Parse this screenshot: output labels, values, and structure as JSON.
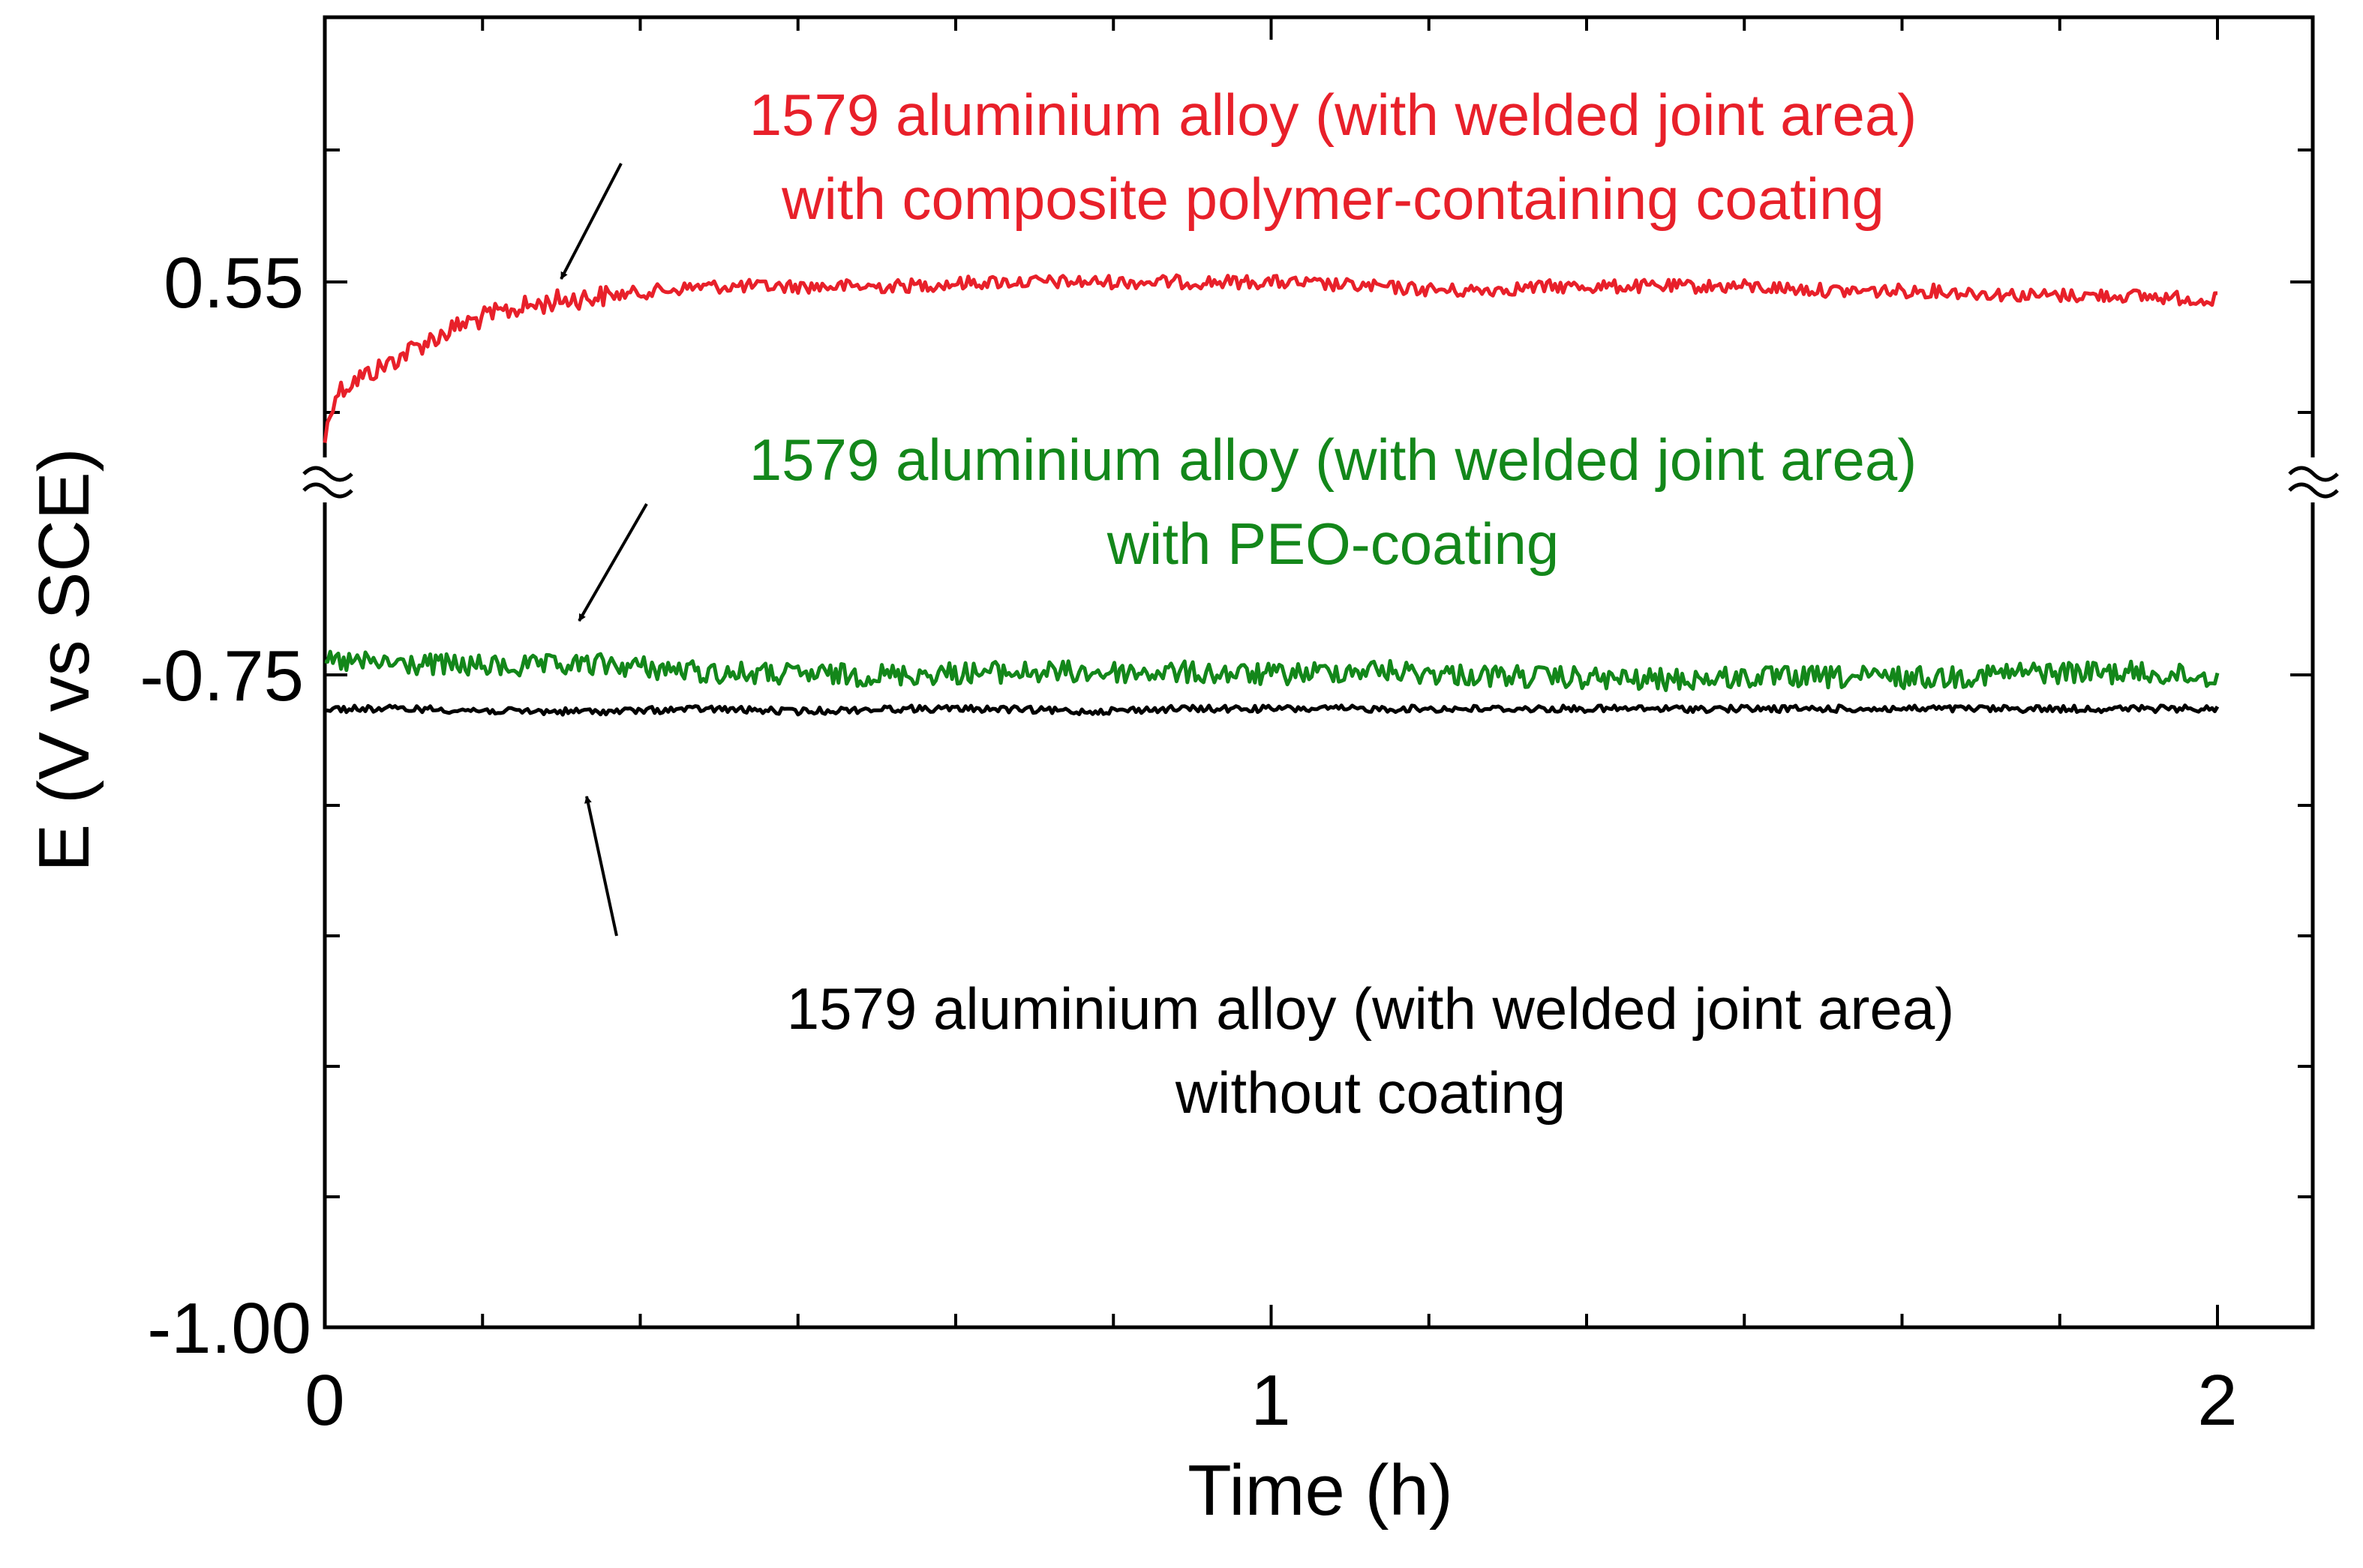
{
  "chart_data": {
    "type": "line",
    "title": "",
    "xlabel": "Time (h)",
    "ylabel": "E (V vs SCE)",
    "xlim": [
      0,
      2
    ],
    "x_ticks": [
      "0",
      "1",
      "2"
    ],
    "y_ticks": [
      "0.55",
      "-0.75",
      "-1.00"
    ],
    "y_axis_break": "between -0.75 and 0.55",
    "grid": false,
    "series": [
      {
        "name": "with composite polymer-containing coating",
        "color": "#e8202a",
        "panel": "upper",
        "x": [
          0.0,
          0.01,
          0.03,
          0.06,
          0.1,
          0.15,
          0.2,
          0.25,
          0.3,
          0.4,
          0.5,
          0.6,
          0.7,
          0.8,
          0.9,
          1.0,
          1.1,
          1.2,
          1.3,
          1.4,
          1.5,
          1.6,
          1.7,
          1.8,
          1.9,
          2.0
        ],
        "values": [
          0.515,
          0.525,
          0.528,
          0.531,
          0.536,
          0.541,
          0.544,
          0.546,
          0.547,
          0.549,
          0.549,
          0.549,
          0.55,
          0.55,
          0.55,
          0.55,
          0.549,
          0.548,
          0.549,
          0.549,
          0.549,
          0.548,
          0.548,
          0.547,
          0.547,
          0.546
        ]
      },
      {
        "name": "with PEO-coating",
        "color": "#13871a",
        "panel": "lower",
        "x": [
          0.0,
          0.1,
          0.2,
          0.3,
          0.4,
          0.5,
          0.6,
          0.7,
          0.8,
          0.9,
          1.0,
          1.1,
          1.2,
          1.3,
          1.4,
          1.5,
          1.6,
          1.7,
          1.8,
          1.9,
          2.0
        ],
        "values": [
          -0.745,
          -0.746,
          -0.747,
          -0.746,
          -0.749,
          -0.75,
          -0.75,
          -0.749,
          -0.749,
          -0.749,
          -0.75,
          -0.748,
          -0.75,
          -0.751,
          -0.752,
          -0.751,
          -0.751,
          -0.751,
          -0.749,
          -0.749,
          -0.751
        ]
      },
      {
        "name": "without coating",
        "color": "#000000",
        "panel": "lower",
        "x": [
          0.0,
          0.1,
          0.2,
          0.3,
          0.4,
          0.5,
          0.6,
          0.7,
          0.8,
          0.9,
          1.0,
          1.1,
          1.2,
          1.3,
          1.4,
          1.5,
          1.6,
          1.7,
          1.8,
          1.9,
          2.0
        ],
        "values": [
          -0.763,
          -0.763,
          -0.764,
          -0.764,
          -0.763,
          -0.764,
          -0.763,
          -0.763,
          -0.764,
          -0.763,
          -0.763,
          -0.763,
          -0.763,
          -0.763,
          -0.763,
          -0.763,
          -0.763,
          -0.763,
          -0.763,
          -0.763,
          -0.763
        ]
      }
    ],
    "annotations": [
      {
        "lines": [
          "1579 aluminium alloy (with welded joint area)",
          "with composite polymer-containing coating"
        ],
        "color": "#e8202a",
        "arrow_to_x": 0.24
      },
      {
        "lines": [
          "1579 aluminium alloy (with welded joint area)",
          "with PEO-coating"
        ],
        "color": "#13871a",
        "arrow_to_x": 0.27
      },
      {
        "lines": [
          "1579 aluminium alloy (with welded joint area)",
          "without coating"
        ],
        "color": "#000000",
        "arrow_to_x": 0.27
      }
    ]
  }
}
